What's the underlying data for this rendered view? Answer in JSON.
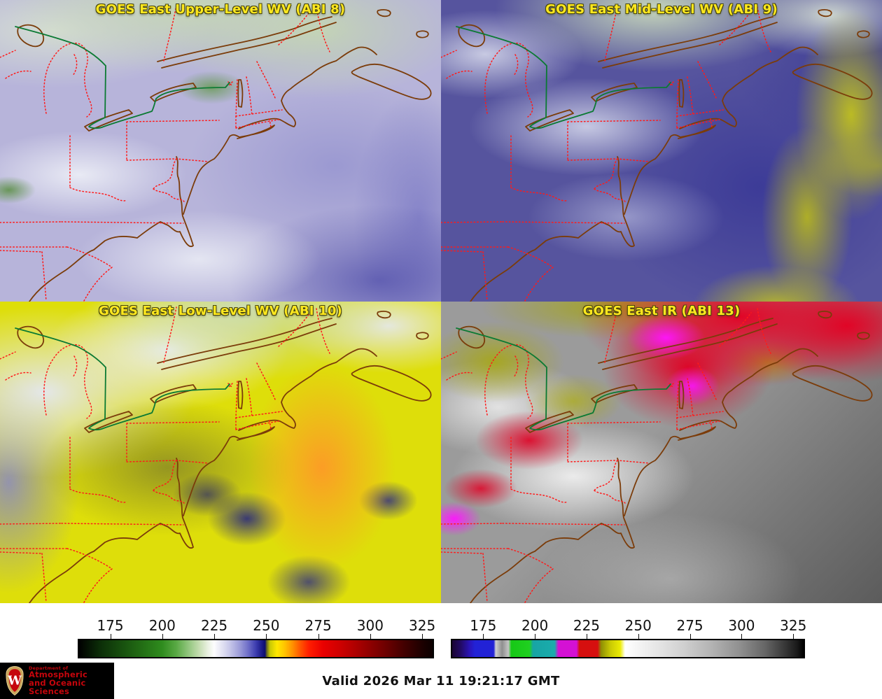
{
  "panels": [
    {
      "id": "abi8",
      "title": "GOES East Upper-Level WV (ABI 8)"
    },
    {
      "id": "abi9",
      "title": "GOES East Mid-Level WV (ABI 9)"
    },
    {
      "id": "abi10",
      "title": "GOES East Low-Level WV (ABI 10)"
    },
    {
      "id": "abi13",
      "title": "GOES East IR (ABI 13)"
    }
  ],
  "colorbars": {
    "wv": {
      "tick_values": [
        175,
        200,
        225,
        250,
        275,
        300,
        325
      ],
      "range": [
        160,
        330
      ],
      "description": "water-vapor enhancement: black-green-white-blue-navy then yellow-orange-red-dark red"
    },
    "ir": {
      "tick_values": [
        175,
        200,
        225,
        250,
        275,
        300,
        325
      ],
      "range": [
        160,
        330
      ],
      "description": "IR enhancement: navy-blue-gray-green-teal-magenta-red-yellow then white-to-black grayscale"
    }
  },
  "map_overlay": {
    "state_border_color": "#ff1a1a",
    "coastline_color": "#7b3c0a",
    "international_border_color": "#0b7a33"
  },
  "footer": {
    "valid_time": "Valid 2026 Mar 11 19:21:17 GMT"
  },
  "logo": {
    "dept_line": "Department of",
    "name_line1": "Atmospheric",
    "name_line2": "and Oceanic Sciences",
    "crest_letter": "W",
    "uw_red": "#c5050c"
  },
  "colors": {
    "title_yellow": "#ffe81e",
    "legend_background": "#ffffff"
  }
}
